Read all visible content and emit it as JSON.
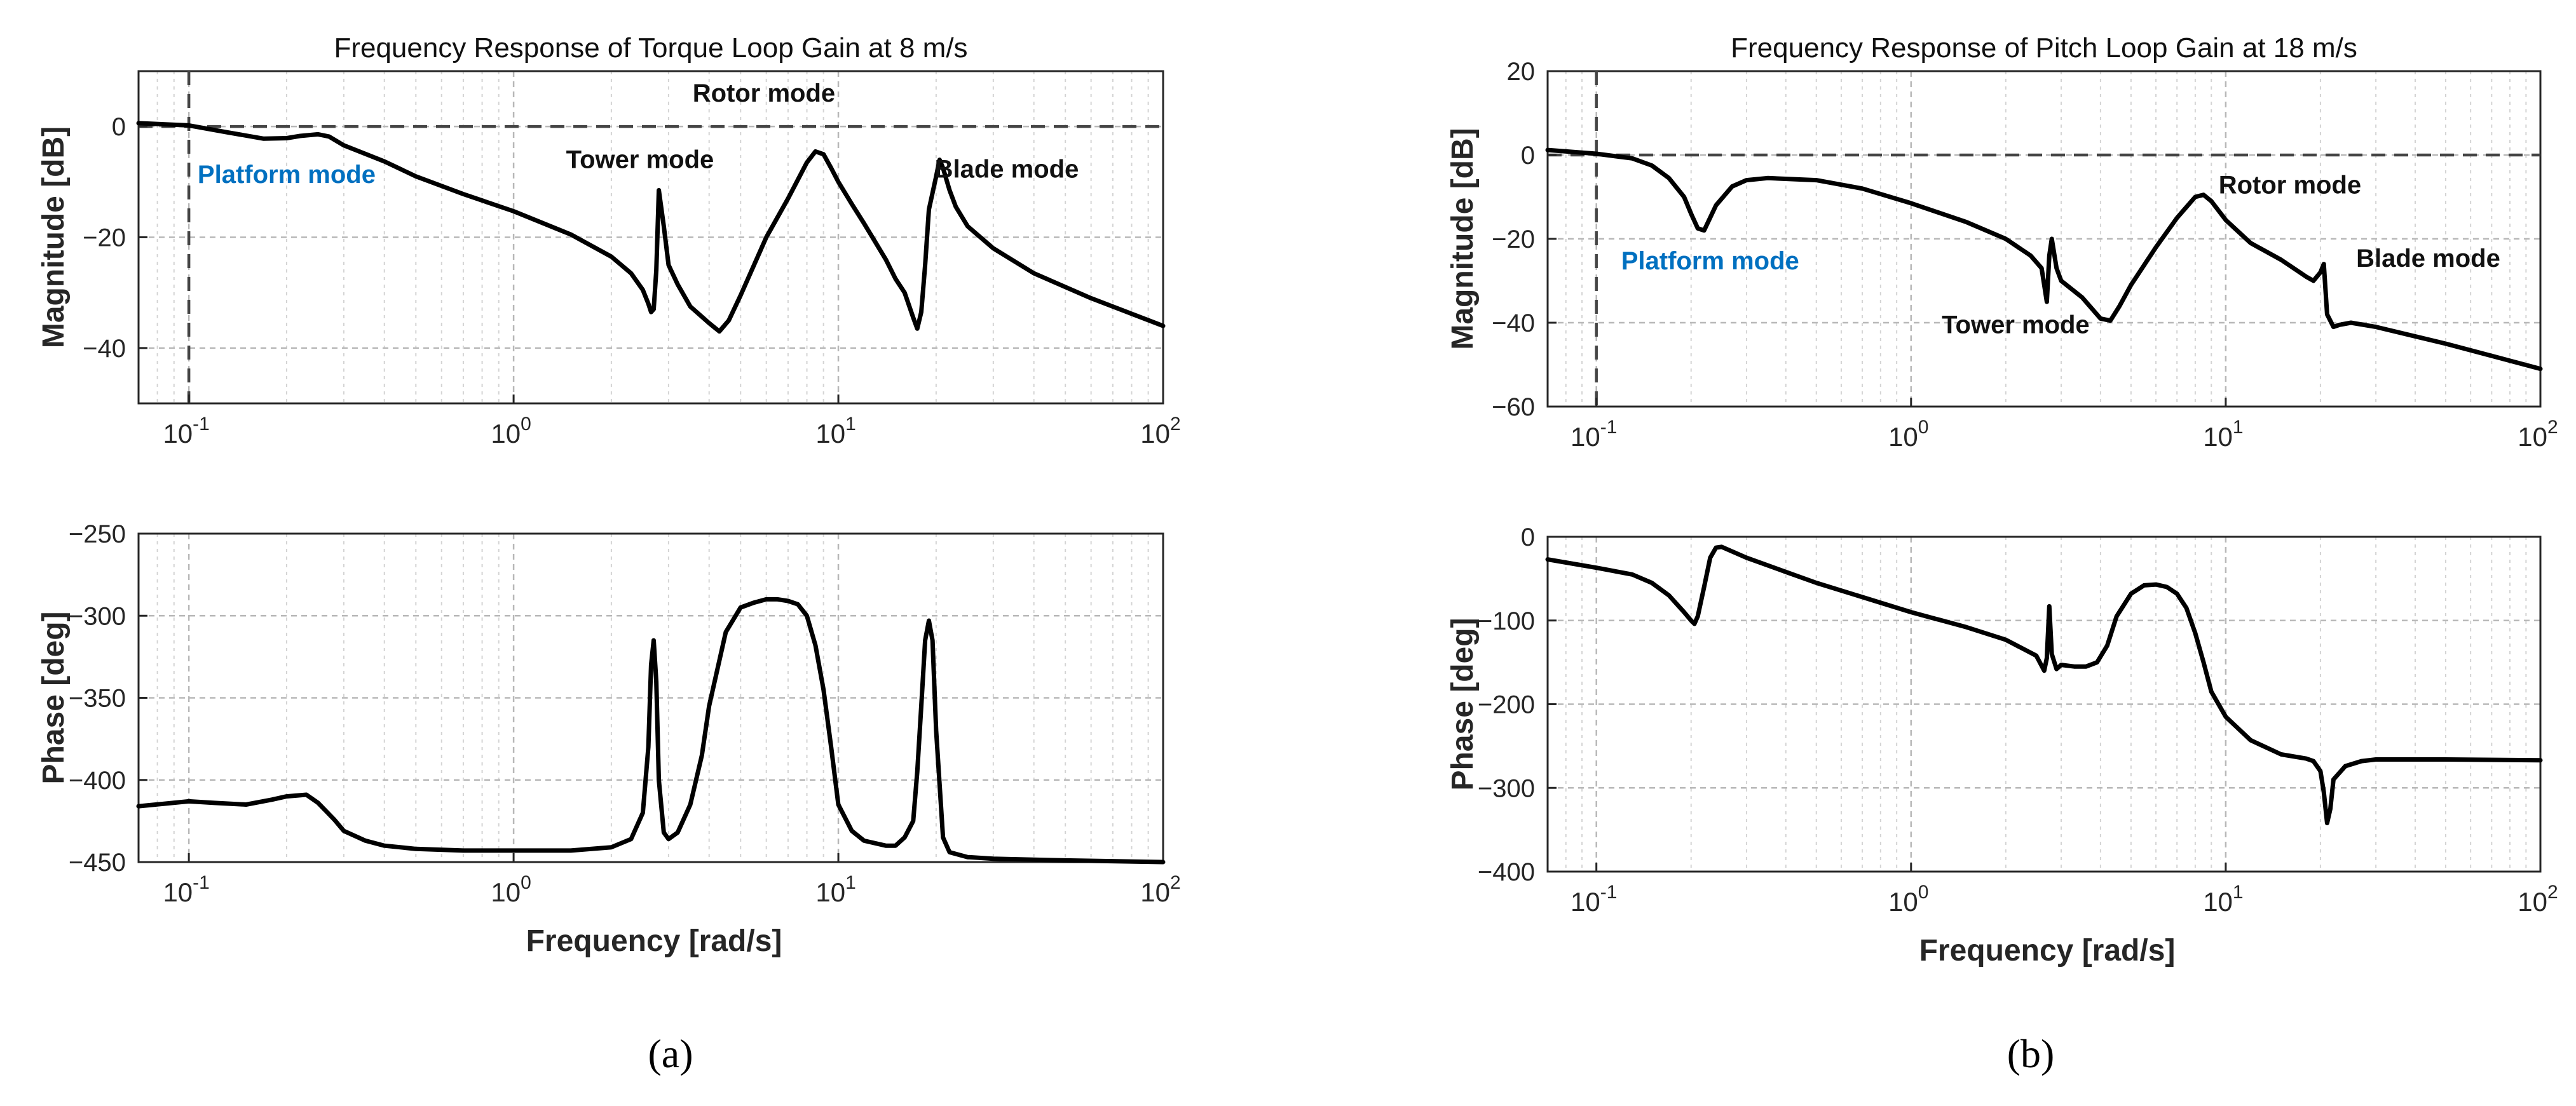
{
  "colors": {
    "curve": "#000000",
    "grid": "#d4d4d4",
    "platform_label": "#0070c0",
    "reference": "#444444"
  },
  "panel_captions": [
    "(a)",
    "(b)"
  ],
  "chart_data": [
    {
      "type": "line",
      "panel": "a",
      "role": "magnitude",
      "title": "Frequency Response of Torque Loop Gain at 8 m/s",
      "xlabel": "",
      "ylabel": "Magnitude [dB]",
      "xscale": "log",
      "xlim": [
        0.07,
        100
      ],
      "ylim": [
        -50,
        10
      ],
      "xticks": [
        0.1,
        1,
        10,
        100
      ],
      "xtick_labels": [
        {
          "base": "10",
          "exp": "-1"
        },
        {
          "base": "10",
          "exp": "0"
        },
        {
          "base": "10",
          "exp": "1"
        },
        {
          "base": "10",
          "exp": "2"
        }
      ],
      "yticks": [
        0,
        -20,
        -40
      ],
      "ytick_labels": [
        "0",
        "−20",
        "−40"
      ],
      "grid": true,
      "reference_lines": {
        "y": 0,
        "x": 0.1
      },
      "annotations": [
        {
          "text": "Rotor mode",
          "x": 5.9,
          "y": 4.5,
          "color": "black"
        },
        {
          "text": "Tower mode",
          "x": 2.45,
          "y": -7.5,
          "color": "black"
        },
        {
          "text": "Blade mode",
          "x": 33.0,
          "y": -9.2,
          "color": "black"
        },
        {
          "text": "Platform mode",
          "x": 0.2,
          "y": -10.2,
          "color": "blue"
        }
      ],
      "series": [
        {
          "name": "Torque loop gain magnitude",
          "x": [
            0.07,
            0.1,
            0.13,
            0.17,
            0.2,
            0.22,
            0.25,
            0.27,
            0.3,
            0.4,
            0.5,
            0.7,
            1.0,
            1.5,
            2.0,
            2.3,
            2.5,
            2.6,
            2.65,
            2.7,
            2.75,
            2.8,
            2.9,
            3.0,
            3.2,
            3.5,
            4.0,
            4.3,
            4.6,
            5.0,
            6.0,
            7.0,
            8.0,
            8.5,
            9.0,
            9.5,
            10.0,
            11,
            12,
            14,
            15,
            16,
            17,
            17.5,
            18,
            18.5,
            19,
            20,
            20.5,
            21,
            22,
            23,
            25,
            30,
            40,
            60,
            100
          ],
          "y": [
            0.6,
            0.2,
            -1.0,
            -2.2,
            -2.1,
            -1.7,
            -1.4,
            -1.8,
            -3.4,
            -6.3,
            -9.0,
            -12.2,
            -15.3,
            -19.5,
            -23.5,
            -26.5,
            -29.5,
            -32.0,
            -33.5,
            -33.0,
            -26.0,
            -11.5,
            -18.0,
            -25.0,
            -28.5,
            -32.5,
            -35.5,
            -37.0,
            -35.0,
            -30.5,
            -20.0,
            -13.0,
            -6.5,
            -4.5,
            -5.0,
            -7.5,
            -10.0,
            -14.0,
            -17.5,
            -24.0,
            -27.5,
            -30.0,
            -34.5,
            -36.5,
            -33.5,
            -25.0,
            -15.0,
            -9.0,
            -6.0,
            -7.5,
            -11.5,
            -14.5,
            -18.0,
            -22.0,
            -26.5,
            -31.0,
            -36.0
          ]
        }
      ]
    },
    {
      "type": "line",
      "panel": "a",
      "role": "phase",
      "title": "",
      "xlabel": "Frequency [rad/s]",
      "ylabel": "Phase [deg]",
      "xscale": "log",
      "xlim": [
        0.07,
        100
      ],
      "ylim": [
        -450,
        -250
      ],
      "xticks": [
        0.1,
        1,
        10,
        100
      ],
      "xtick_labels": [
        {
          "base": "10",
          "exp": "-1"
        },
        {
          "base": "10",
          "exp": "0"
        },
        {
          "base": "10",
          "exp": "1"
        },
        {
          "base": "10",
          "exp": "2"
        }
      ],
      "yticks": [
        -250,
        -300,
        -350,
        -400,
        -450
      ],
      "ytick_labels": [
        "−250",
        "−300",
        "−350",
        "−400",
        "−450"
      ],
      "grid": true,
      "reference_lines": {},
      "annotations": [],
      "series": [
        {
          "name": "Torque loop gain phase",
          "x": [
            0.07,
            0.1,
            0.12,
            0.15,
            0.18,
            0.2,
            0.23,
            0.25,
            0.28,
            0.3,
            0.35,
            0.4,
            0.5,
            0.7,
            1.0,
            1.5,
            2.0,
            2.3,
            2.5,
            2.6,
            2.65,
            2.7,
            2.75,
            2.8,
            2.9,
            3.0,
            3.2,
            3.5,
            3.8,
            4.0,
            4.5,
            5.0,
            5.5,
            6.0,
            6.5,
            7.0,
            7.5,
            8.0,
            8.5,
            9.0,
            9.5,
            10.0,
            11,
            12,
            14,
            15,
            16,
            17,
            17.5,
            18,
            18.5,
            19,
            19.5,
            20,
            21,
            22,
            25,
            30,
            50,
            100
          ],
          "y": [
            -416,
            -413,
            -414,
            -415,
            -412,
            -410,
            -409,
            -414,
            -424,
            -431,
            -437,
            -440,
            -442,
            -443,
            -443,
            -443,
            -441,
            -436,
            -420,
            -380,
            -330,
            -315,
            -340,
            -400,
            -432,
            -436,
            -432,
            -415,
            -385,
            -355,
            -310,
            -295,
            -292,
            -290,
            -290,
            -291,
            -293,
            -300,
            -318,
            -345,
            -380,
            -415,
            -431,
            -437,
            -440,
            -440,
            -435,
            -425,
            -395,
            -355,
            -315,
            -303,
            -315,
            -370,
            -435,
            -444,
            -447,
            -448,
            -449,
            -450
          ]
        }
      ]
    },
    {
      "type": "line",
      "panel": "b",
      "role": "magnitude",
      "title": "Frequency Response of Pitch Loop Gain at 18 m/s",
      "xlabel": "",
      "ylabel": "Magnitude [dB]",
      "xscale": "log",
      "xlim": [
        0.07,
        100
      ],
      "ylim": [
        -60,
        20
      ],
      "xticks": [
        0.1,
        1,
        10,
        100
      ],
      "xtick_labels": [
        {
          "base": "10",
          "exp": "-1"
        },
        {
          "base": "10",
          "exp": "0"
        },
        {
          "base": "10",
          "exp": "1"
        },
        {
          "base": "10",
          "exp": "2"
        }
      ],
      "yticks": [
        20,
        0,
        -20,
        -40,
        -60
      ],
      "ytick_labels": [
        "20",
        "0",
        "−20",
        "−40",
        "−60"
      ],
      "grid": true,
      "reference_lines": {
        "y": 0,
        "x": 0.1
      },
      "annotations": [
        {
          "text": "Rotor mode",
          "x": 16.0,
          "y": -9.2,
          "color": "black"
        },
        {
          "text": "Tower mode",
          "x": 2.15,
          "y": -42.5,
          "color": "black"
        },
        {
          "text": "Blade mode",
          "x": 44.0,
          "y": -26.7,
          "color": "black"
        },
        {
          "text": "Platform mode",
          "x": 0.23,
          "y": -27.3,
          "color": "blue"
        }
      ],
      "series": [
        {
          "name": "Pitch loop gain magnitude",
          "x": [
            0.07,
            0.1,
            0.13,
            0.15,
            0.17,
            0.19,
            0.2,
            0.21,
            0.22,
            0.24,
            0.27,
            0.3,
            0.35,
            0.5,
            0.7,
            1.0,
            1.5,
            2.0,
            2.4,
            2.6,
            2.7,
            2.75,
            2.8,
            2.9,
            3.0,
            3.5,
            4.0,
            4.3,
            4.6,
            5.0,
            6.0,
            7.0,
            8.0,
            8.5,
            9.0,
            10,
            12,
            15,
            18,
            19,
            20,
            20.5,
            21,
            22,
            23,
            25,
            30,
            50,
            100
          ],
          "y": [
            1.2,
            0.3,
            -0.8,
            -2.5,
            -5.5,
            -10.0,
            -14.0,
            -17.5,
            -18.0,
            -12.0,
            -7.5,
            -6.0,
            -5.5,
            -6.0,
            -8.0,
            -11.5,
            -16.0,
            -20.0,
            -24.0,
            -27.0,
            -35.0,
            -24.0,
            -20.0,
            -27.0,
            -30.0,
            -34.0,
            -39.0,
            -39.5,
            -36.0,
            -31.0,
            -22.0,
            -15.0,
            -10.0,
            -9.5,
            -11.0,
            -15.5,
            -21.0,
            -25.0,
            -29.0,
            -30.0,
            -28.0,
            -26.0,
            -38.0,
            -41.0,
            -40.5,
            -40.0,
            -41.0,
            -45.0,
            -51.0
          ]
        }
      ]
    },
    {
      "type": "line",
      "panel": "b",
      "role": "phase",
      "title": "",
      "xlabel": "Frequency [rad/s]",
      "ylabel": "Phase [deg]",
      "xscale": "log",
      "xlim": [
        0.07,
        100
      ],
      "ylim": [
        -400,
        0
      ],
      "xticks": [
        0.1,
        1,
        10,
        100
      ],
      "xtick_labels": [
        {
          "base": "10",
          "exp": "-1"
        },
        {
          "base": "10",
          "exp": "0"
        },
        {
          "base": "10",
          "exp": "1"
        },
        {
          "base": "10",
          "exp": "2"
        }
      ],
      "yticks": [
        0,
        -100,
        -200,
        -300,
        -400
      ],
      "ytick_labels": [
        "0",
        "−100",
        "−200",
        "−300",
        "−400"
      ],
      "grid": true,
      "reference_lines": {},
      "annotations": [],
      "series": [
        {
          "name": "Pitch loop gain phase",
          "x": [
            0.07,
            0.1,
            0.13,
            0.15,
            0.17,
            0.19,
            0.2,
            0.205,
            0.21,
            0.22,
            0.23,
            0.24,
            0.25,
            0.3,
            0.4,
            0.5,
            0.7,
            1.0,
            1.5,
            2.0,
            2.5,
            2.65,
            2.7,
            2.75,
            2.8,
            2.9,
            3.0,
            3.3,
            3.6,
            3.9,
            4.2,
            4.5,
            5.0,
            5.5,
            6.0,
            6.5,
            7.0,
            7.5,
            8.0,
            8.5,
            9.0,
            10,
            12,
            15,
            18,
            19,
            20,
            20.5,
            21,
            21.5,
            22,
            24,
            27,
            30,
            50,
            100
          ],
          "y": [
            -27,
            -37,
            -45,
            -55,
            -70,
            -90,
            -100,
            -104,
            -95,
            -60,
            -25,
            -13,
            -12,
            -25,
            -42,
            -55,
            -72,
            -90,
            -108,
            -123,
            -142,
            -160,
            -145,
            -83,
            -140,
            -158,
            -153,
            -155,
            -155,
            -150,
            -130,
            -95,
            -68,
            -58,
            -57,
            -60,
            -68,
            -85,
            -115,
            -150,
            -185,
            -215,
            -243,
            -260,
            -265,
            -268,
            -280,
            -305,
            -342,
            -325,
            -290,
            -274,
            -268,
            -266,
            -266,
            -267
          ]
        }
      ]
    }
  ]
}
